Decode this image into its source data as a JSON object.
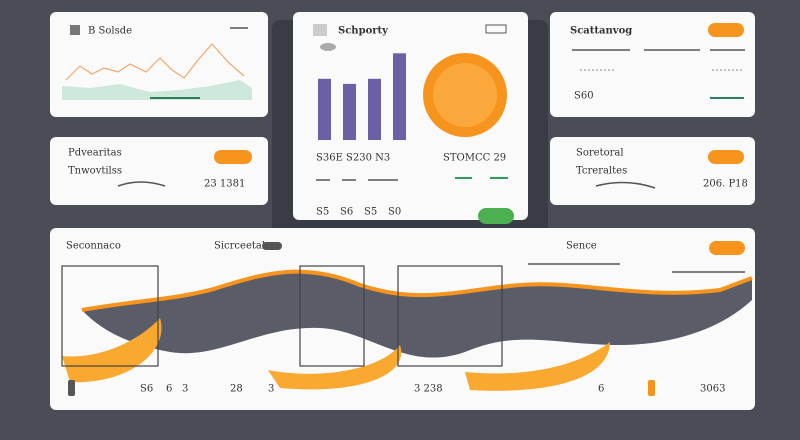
{
  "top_left": {
    "title": "B Solsde"
  },
  "center": {
    "title": "Schporty",
    "stats": [
      "S36E S230 N3",
      "STOMCC 29"
    ],
    "footer": [
      "S5",
      "S6",
      "S5",
      "S0"
    ],
    "bars": [
      3.6,
      3.3,
      3.6,
      5.1
    ]
  },
  "top_right": {
    "title": "Scattanvog",
    "value": "S60"
  },
  "mid_left": {
    "title": "Pdvearitas",
    "subtitle": "Tnwovtilss",
    "value": "23 1381"
  },
  "mid_right": {
    "title": "Soretoral",
    "subtitle": "Tcreraltes",
    "value": "206. P18"
  },
  "bottom": {
    "titles": [
      "Seconnaco",
      "Sicrceetal",
      "Sence"
    ],
    "labels": [
      "S6",
      "6",
      "3",
      "28",
      "3",
      "3 238",
      "6",
      "3063"
    ]
  }
}
